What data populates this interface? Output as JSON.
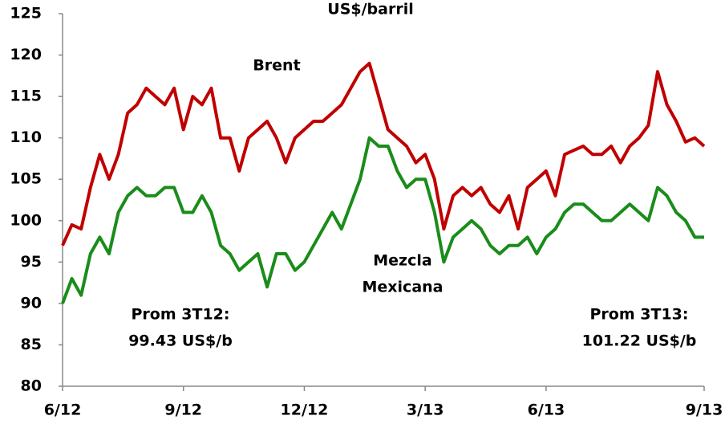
{
  "chart_data": {
    "type": "line",
    "title": "US$/barril",
    "ylim": [
      80,
      125
    ],
    "yticks": [
      80,
      85,
      90,
      95,
      100,
      105,
      110,
      115,
      120,
      125
    ],
    "xlim": [
      0,
      69
    ],
    "xticks": [
      {
        "value": 0,
        "label": "6/12"
      },
      {
        "value": 13,
        "label": "9/12"
      },
      {
        "value": 26,
        "label": "12/12"
      },
      {
        "value": 39,
        "label": "3/13"
      },
      {
        "value": 52,
        "label": "6/13"
      },
      {
        "value": 69,
        "label": "9/13"
      }
    ],
    "grid": false,
    "series": [
      {
        "name": "Brent",
        "color": "#c00000",
        "values": [
          97,
          99.5,
          99,
          104,
          108,
          105,
          108,
          113,
          114,
          116,
          115,
          114,
          116,
          111,
          115,
          114,
          116,
          110,
          110,
          106,
          110,
          111,
          112,
          110,
          107,
          110,
          111,
          112,
          112,
          113,
          114,
          116,
          118,
          119,
          115,
          111,
          110,
          109,
          107,
          108,
          105,
          99,
          103,
          104,
          103,
          104,
          102,
          101,
          103,
          99,
          104,
          105,
          106,
          103,
          108,
          108.5,
          109,
          108,
          108,
          109,
          107,
          109,
          110,
          111.5,
          118,
          114,
          112,
          109.5,
          110,
          109
        ]
      },
      {
        "name": "Mezcla Mexicana",
        "color": "#1a8c1a",
        "values": [
          90,
          93,
          91,
          96,
          98,
          96,
          101,
          103,
          104,
          103,
          103,
          104,
          104,
          101,
          101,
          103,
          101,
          97,
          96,
          94,
          95,
          96,
          92,
          96,
          96,
          94,
          95,
          97,
          99,
          101,
          99,
          102,
          105,
          110,
          109,
          109,
          106,
          104,
          105,
          105,
          101,
          95,
          98,
          99,
          100,
          99,
          97,
          96,
          97,
          97,
          98,
          96,
          98,
          99,
          101,
          102,
          102,
          101,
          100,
          100,
          101,
          102,
          101,
          100,
          104,
          103,
          101,
          100,
          98,
          98
        ]
      }
    ],
    "annotations": [
      {
        "lines": [
          "Brent"
        ]
      },
      {
        "lines": [
          "Mezcla",
          "Mexicana"
        ]
      },
      {
        "lines": [
          "Prom 3T12:",
          "99.43 US$/b"
        ]
      },
      {
        "lines": [
          "Prom 3T13:",
          "101.22 US$/b"
        ]
      }
    ]
  }
}
